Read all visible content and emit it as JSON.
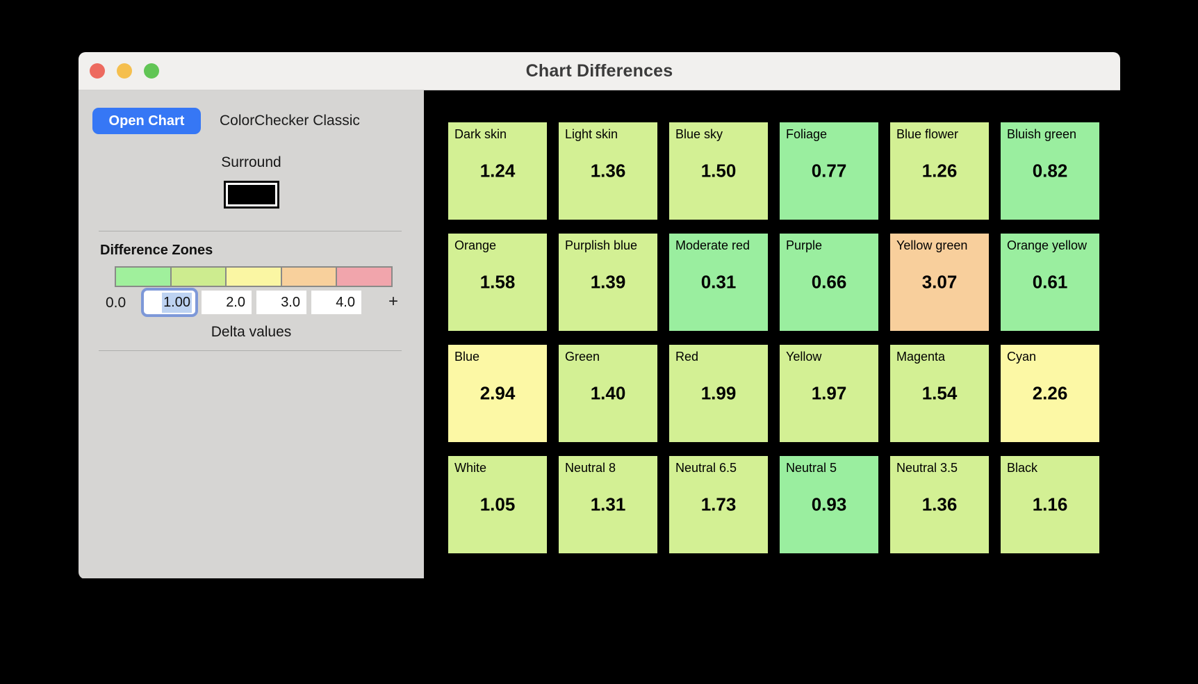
{
  "window": {
    "title": "Chart Differences",
    "traffic_lights": [
      {
        "name": "close",
        "color": "#ed6a5f"
      },
      {
        "name": "minimize",
        "color": "#f5bf4e"
      },
      {
        "name": "zoom",
        "color": "#61c555"
      }
    ]
  },
  "sidebar": {
    "open_chart_label": "Open Chart",
    "open_chart_color": "#3677f5",
    "chart_name": "ColorChecker Classic",
    "surround_label": "Surround",
    "surround_color": "#000000",
    "zones_heading": "Difference Zones",
    "zone_bar_colors": [
      "#a0f09c",
      "#cdec8f",
      "#faf6a3",
      "#f8d09c",
      "#f1a5ac"
    ],
    "zone_start_label": "0.0",
    "zone_inputs": [
      {
        "value": "1.00",
        "focused": true
      },
      {
        "value": "2.0",
        "focused": false
      },
      {
        "value": "3.0",
        "focused": false
      },
      {
        "value": "4.0",
        "focused": false
      }
    ],
    "add_zone_label": "+",
    "delta_values_label": "Delta values",
    "focus_ring_color": "#7d98d8",
    "selection_color": "#bdd2f1"
  },
  "chart_data": {
    "type": "heatmap",
    "title": "Chart Differences",
    "grid": {
      "columns": 6,
      "rows": 4
    },
    "zone_ranges": [
      "0-1",
      "1-2",
      "2-3",
      "3-4",
      "4+"
    ],
    "zone_colors": [
      "#9aee9f",
      "#d3f094",
      "#fcf8a5",
      "#f8cf9c",
      "#f2a6ae"
    ],
    "patches": [
      {
        "name": "Dark skin",
        "value": "1.24"
      },
      {
        "name": "Light skin",
        "value": "1.36"
      },
      {
        "name": "Blue sky",
        "value": "1.50"
      },
      {
        "name": "Foliage",
        "value": "0.77"
      },
      {
        "name": "Blue flower",
        "value": "1.26"
      },
      {
        "name": "Bluish green",
        "value": "0.82"
      },
      {
        "name": "Orange",
        "value": "1.58"
      },
      {
        "name": "Purplish blue",
        "value": "1.39"
      },
      {
        "name": "Moderate red",
        "value": "0.31"
      },
      {
        "name": "Purple",
        "value": "0.66"
      },
      {
        "name": "Yellow green",
        "value": "3.07"
      },
      {
        "name": "Orange yellow",
        "value": "0.61"
      },
      {
        "name": "Blue",
        "value": "2.94"
      },
      {
        "name": "Green",
        "value": "1.40"
      },
      {
        "name": "Red",
        "value": "1.99"
      },
      {
        "name": "Yellow",
        "value": "1.97"
      },
      {
        "name": "Magenta",
        "value": "1.54"
      },
      {
        "name": "Cyan",
        "value": "2.26"
      },
      {
        "name": "White",
        "value": "1.05"
      },
      {
        "name": "Neutral 8",
        "value": "1.31"
      },
      {
        "name": "Neutral 6.5",
        "value": "1.73"
      },
      {
        "name": "Neutral 5",
        "value": "0.93"
      },
      {
        "name": "Neutral 3.5",
        "value": "1.36"
      },
      {
        "name": "Black",
        "value": "1.16"
      }
    ]
  }
}
